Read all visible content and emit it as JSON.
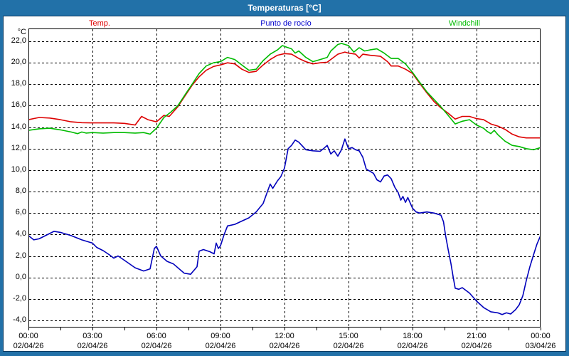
{
  "window": {
    "title": "Temperaturas [°C]"
  },
  "legend": {
    "items": [
      {
        "label": "Temp.",
        "color": "#dd0000"
      },
      {
        "label": "Punto de rocío",
        "color": "#0000cc"
      },
      {
        "label": "Windchill",
        "color": "#00bb00"
      }
    ]
  },
  "colors": {
    "frame_blue": "#2271a8",
    "border_navy": "#0c3a60",
    "plot_background": "#ffffff",
    "gridline": "#000000",
    "temp_line": "#dd0000",
    "dewpoint_line": "#0000bb",
    "windchill_line": "#00bb00"
  },
  "chart_data": {
    "type": "line",
    "title": "Temperaturas [°C]",
    "ylabel": "°C",
    "ylim": [
      -4.66,
      23.19
    ],
    "xlim_hours": [
      0,
      24
    ],
    "grid": true,
    "legend_position": "top",
    "yticks": [
      22,
      20,
      18,
      16,
      14,
      12,
      10,
      8,
      6,
      4,
      2,
      0,
      -2,
      -4
    ],
    "ytick_labels": [
      "22,0",
      "20,0",
      "18,0",
      "16,0",
      "14,0",
      "12,0",
      "10,0",
      "8,0",
      "6,0",
      "4,0",
      "2,0",
      "0,0",
      "-2,0",
      "-4,0"
    ],
    "xticks": [
      {
        "hour": 0,
        "time": "00:00",
        "date": "02/04/26"
      },
      {
        "hour": 3,
        "time": "03:00",
        "date": "02/04/26"
      },
      {
        "hour": 6,
        "time": "06:00",
        "date": "02/04/26"
      },
      {
        "hour": 9,
        "time": "09:00",
        "date": "02/04/26"
      },
      {
        "hour": 12,
        "time": "12:00",
        "date": "02/04/26"
      },
      {
        "hour": 15,
        "time": "15:00",
        "date": "02/04/26"
      },
      {
        "hour": 18,
        "time": "18:00",
        "date": "02/04/26"
      },
      {
        "hour": 21,
        "time": "21:00",
        "date": "02/04/26"
      },
      {
        "hour": 24,
        "time": "00:00",
        "date": "03/04/26"
      }
    ],
    "minor_tick_step_hours": 1.5,
    "series": [
      {
        "name": "Temp.",
        "color": "#dd0000",
        "points": [
          [
            0,
            14.7
          ],
          [
            0.5,
            14.9
          ],
          [
            1,
            14.85
          ],
          [
            1.5,
            14.7
          ],
          [
            2,
            14.5
          ],
          [
            2.5,
            14.42
          ],
          [
            3,
            14.4
          ],
          [
            3.5,
            14.4
          ],
          [
            4,
            14.4
          ],
          [
            4.5,
            14.35
          ],
          [
            5,
            14.2
          ],
          [
            5.3,
            15.0
          ],
          [
            5.6,
            14.7
          ],
          [
            6,
            14.5
          ],
          [
            6.35,
            15.1
          ],
          [
            6.6,
            15.0
          ],
          [
            7,
            15.9
          ],
          [
            7.33,
            16.9
          ],
          [
            7.67,
            17.9
          ],
          [
            8,
            18.7
          ],
          [
            8.33,
            19.3
          ],
          [
            8.67,
            19.65
          ],
          [
            9,
            19.8
          ],
          [
            9.33,
            20.0
          ],
          [
            9.67,
            19.9
          ],
          [
            10,
            19.4
          ],
          [
            10.33,
            19.1
          ],
          [
            10.67,
            19.2
          ],
          [
            11,
            19.8
          ],
          [
            11.33,
            20.3
          ],
          [
            11.67,
            20.7
          ],
          [
            12,
            20.85
          ],
          [
            12.33,
            20.8
          ],
          [
            12.67,
            20.4
          ],
          [
            13,
            20.1
          ],
          [
            13.33,
            19.9
          ],
          [
            13.67,
            20.0
          ],
          [
            14,
            20.05
          ],
          [
            14.5,
            20.8
          ],
          [
            14.83,
            21.0
          ],
          [
            15,
            20.9
          ],
          [
            15.33,
            20.8
          ],
          [
            15.5,
            20.45
          ],
          [
            15.67,
            20.8
          ],
          [
            16,
            20.7
          ],
          [
            16.5,
            20.6
          ],
          [
            16.83,
            20.1
          ],
          [
            17,
            19.7
          ],
          [
            17.33,
            19.7
          ],
          [
            17.67,
            19.4
          ],
          [
            18,
            19.0
          ],
          [
            18.33,
            18.1
          ],
          [
            18.67,
            17.2
          ],
          [
            19,
            16.4
          ],
          [
            19.33,
            15.8
          ],
          [
            19.67,
            15.3
          ],
          [
            20,
            14.75
          ],
          [
            20.33,
            15.0
          ],
          [
            20.67,
            15.0
          ],
          [
            21,
            14.8
          ],
          [
            21.33,
            14.7
          ],
          [
            21.67,
            14.3
          ],
          [
            22,
            14.1
          ],
          [
            22.33,
            13.8
          ],
          [
            22.67,
            13.35
          ],
          [
            23,
            13.1
          ],
          [
            23.33,
            13.0
          ],
          [
            23.67,
            13.0
          ],
          [
            24,
            13.0
          ]
        ]
      },
      {
        "name": "Punto de rocío",
        "color": "#0000bb",
        "points": [
          [
            0,
            3.9
          ],
          [
            0.25,
            3.5
          ],
          [
            0.5,
            3.6
          ],
          [
            1,
            4.1
          ],
          [
            1.2,
            4.3
          ],
          [
            1.5,
            4.2
          ],
          [
            2,
            3.9
          ],
          [
            2.5,
            3.5
          ],
          [
            3,
            3.2
          ],
          [
            3.2,
            2.8
          ],
          [
            3.5,
            2.5
          ],
          [
            3.8,
            2.1
          ],
          [
            4,
            1.8
          ],
          [
            4.2,
            2.0
          ],
          [
            4.5,
            1.6
          ],
          [
            5,
            0.9
          ],
          [
            5.4,
            0.6
          ],
          [
            5.7,
            0.8
          ],
          [
            5.9,
            2.7
          ],
          [
            6,
            2.9
          ],
          [
            6.2,
            2.0
          ],
          [
            6.5,
            1.5
          ],
          [
            6.8,
            1.25
          ],
          [
            7.3,
            0.4
          ],
          [
            7.6,
            0.3
          ],
          [
            7.9,
            1.0
          ],
          [
            8,
            2.45
          ],
          [
            8.2,
            2.6
          ],
          [
            8.5,
            2.4
          ],
          [
            8.7,
            2.2
          ],
          [
            8.8,
            3.2
          ],
          [
            8.9,
            2.7
          ],
          [
            9,
            2.95
          ],
          [
            9.17,
            4.0
          ],
          [
            9.33,
            4.8
          ],
          [
            9.67,
            4.95
          ],
          [
            10,
            5.25
          ],
          [
            10.33,
            5.55
          ],
          [
            10.67,
            6.1
          ],
          [
            11,
            6.9
          ],
          [
            11.2,
            8.0
          ],
          [
            11.33,
            8.7
          ],
          [
            11.45,
            8.3
          ],
          [
            11.67,
            9.0
          ],
          [
            11.83,
            9.4
          ],
          [
            12,
            10.2
          ],
          [
            12.17,
            12.0
          ],
          [
            12.33,
            12.3
          ],
          [
            12.5,
            12.8
          ],
          [
            12.67,
            12.6
          ],
          [
            13,
            11.9
          ],
          [
            13.33,
            11.8
          ],
          [
            13.67,
            11.75
          ],
          [
            13.83,
            12.0
          ],
          [
            14,
            12.3
          ],
          [
            14.17,
            11.5
          ],
          [
            14.33,
            11.8
          ],
          [
            14.5,
            11.3
          ],
          [
            14.67,
            11.9
          ],
          [
            14.83,
            12.9
          ],
          [
            15,
            12.0
          ],
          [
            15.17,
            12.1
          ],
          [
            15.33,
            11.9
          ],
          [
            15.5,
            11.8
          ],
          [
            15.67,
            11.2
          ],
          [
            15.83,
            10.1
          ],
          [
            16,
            9.9
          ],
          [
            16.17,
            9.7
          ],
          [
            16.33,
            9.1
          ],
          [
            16.5,
            8.9
          ],
          [
            16.67,
            9.45
          ],
          [
            16.83,
            9.55
          ],
          [
            17,
            9.2
          ],
          [
            17.17,
            8.4
          ],
          [
            17.33,
            7.9
          ],
          [
            17.45,
            7.2
          ],
          [
            17.55,
            7.55
          ],
          [
            17.67,
            7.0
          ],
          [
            17.78,
            7.45
          ],
          [
            17.9,
            6.9
          ],
          [
            18,
            6.45
          ],
          [
            18.17,
            6.1
          ],
          [
            18.33,
            6.0
          ],
          [
            18.67,
            6.1
          ],
          [
            19,
            6.0
          ],
          [
            19.33,
            5.8
          ],
          [
            19.45,
            5.2
          ],
          [
            19.55,
            3.9
          ],
          [
            19.67,
            2.6
          ],
          [
            19.8,
            1.3
          ],
          [
            19.9,
            0.1
          ],
          [
            20,
            -1.0
          ],
          [
            20.17,
            -1.1
          ],
          [
            20.33,
            -0.95
          ],
          [
            20.67,
            -1.45
          ],
          [
            21,
            -2.2
          ],
          [
            21.33,
            -2.8
          ],
          [
            21.67,
            -3.2
          ],
          [
            22,
            -3.3
          ],
          [
            22.2,
            -3.45
          ],
          [
            22.4,
            -3.3
          ],
          [
            22.6,
            -3.4
          ],
          [
            22.83,
            -3.0
          ],
          [
            23,
            -2.55
          ],
          [
            23.17,
            -1.7
          ],
          [
            23.33,
            -0.3
          ],
          [
            23.5,
            1.0
          ],
          [
            23.67,
            2.1
          ],
          [
            23.83,
            3.1
          ],
          [
            24,
            3.9
          ]
        ]
      },
      {
        "name": "Windchill",
        "color": "#00bb00",
        "points": [
          [
            0,
            13.7
          ],
          [
            0.5,
            13.85
          ],
          [
            1,
            13.9
          ],
          [
            1.5,
            13.75
          ],
          [
            2,
            13.55
          ],
          [
            2.3,
            13.4
          ],
          [
            2.5,
            13.55
          ],
          [
            2.7,
            13.45
          ],
          [
            3,
            13.5
          ],
          [
            3.5,
            13.45
          ],
          [
            4,
            13.5
          ],
          [
            4.5,
            13.5
          ],
          [
            5,
            13.45
          ],
          [
            5.4,
            13.5
          ],
          [
            5.7,
            13.35
          ],
          [
            6,
            13.9
          ],
          [
            6.35,
            14.9
          ],
          [
            6.67,
            15.4
          ],
          [
            7,
            16.0
          ],
          [
            7.33,
            17.0
          ],
          [
            7.67,
            18.0
          ],
          [
            8,
            19.0
          ],
          [
            8.33,
            19.7
          ],
          [
            8.67,
            20.0
          ],
          [
            9,
            20.1
          ],
          [
            9.33,
            20.5
          ],
          [
            9.67,
            20.3
          ],
          [
            10,
            19.8
          ],
          [
            10.33,
            19.3
          ],
          [
            10.67,
            19.4
          ],
          [
            11,
            20.2
          ],
          [
            11.33,
            20.8
          ],
          [
            11.67,
            21.2
          ],
          [
            11.9,
            21.6
          ],
          [
            12.1,
            21.45
          ],
          [
            12.33,
            21.3
          ],
          [
            12.5,
            20.9
          ],
          [
            12.67,
            21.1
          ],
          [
            13,
            20.5
          ],
          [
            13.33,
            20.1
          ],
          [
            13.67,
            20.3
          ],
          [
            14,
            20.5
          ],
          [
            14.17,
            21.1
          ],
          [
            14.5,
            21.7
          ],
          [
            14.67,
            21.8
          ],
          [
            15,
            21.6
          ],
          [
            15.25,
            21.0
          ],
          [
            15.5,
            21.4
          ],
          [
            15.75,
            21.1
          ],
          [
            16,
            21.2
          ],
          [
            16.33,
            21.3
          ],
          [
            16.67,
            20.9
          ],
          [
            17,
            20.4
          ],
          [
            17.33,
            20.4
          ],
          [
            17.67,
            19.9
          ],
          [
            18,
            19.1
          ],
          [
            18.33,
            18.2
          ],
          [
            18.67,
            17.3
          ],
          [
            19,
            16.6
          ],
          [
            19.33,
            15.9
          ],
          [
            19.67,
            15.1
          ],
          [
            20,
            14.3
          ],
          [
            20.33,
            14.55
          ],
          [
            20.67,
            14.7
          ],
          [
            21,
            14.2
          ],
          [
            21.33,
            13.9
          ],
          [
            21.5,
            13.6
          ],
          [
            21.67,
            13.4
          ],
          [
            21.83,
            13.7
          ],
          [
            22,
            13.3
          ],
          [
            22.33,
            12.7
          ],
          [
            22.67,
            12.3
          ],
          [
            23,
            12.2
          ],
          [
            23.33,
            12.0
          ],
          [
            23.67,
            11.9
          ],
          [
            24,
            12.1
          ]
        ]
      }
    ]
  }
}
